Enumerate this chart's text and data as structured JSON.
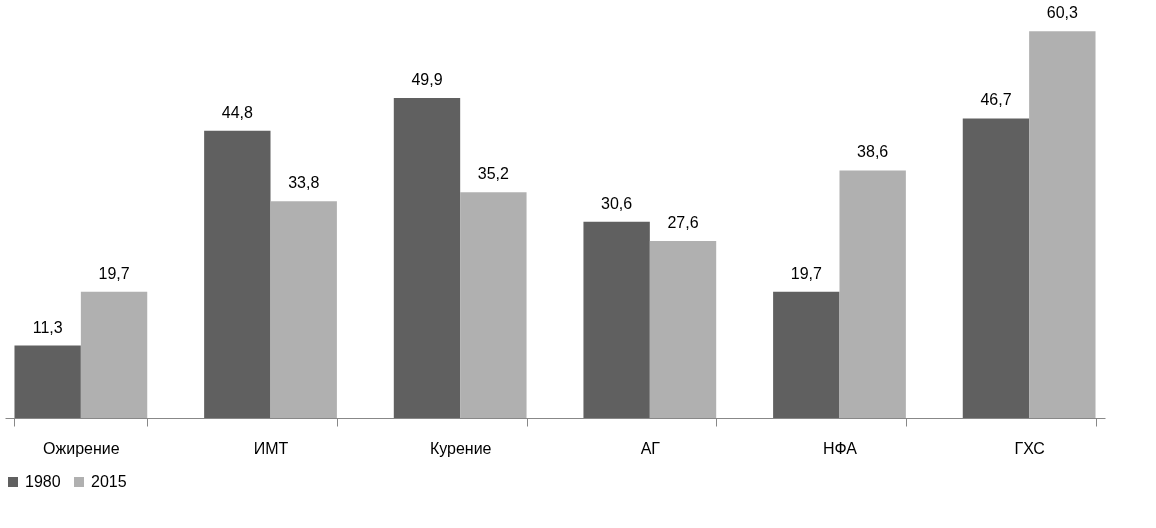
{
  "chart_data": {
    "type": "bar",
    "categories": [
      "Ожирение",
      "ИМТ",
      "Курение",
      "АГ",
      "НФА",
      "ГХС"
    ],
    "series": [
      {
        "name": "1980",
        "color": "#606060",
        "values": [
          11.3,
          44.8,
          49.9,
          30.6,
          19.7,
          46.7
        ],
        "value_labels": [
          "11,3",
          "44,8",
          "49,9",
          "30,6",
          "19,7",
          "46,7"
        ]
      },
      {
        "name": "2015",
        "color": "#b0b0b0",
        "values": [
          19.7,
          33.8,
          35.2,
          27.6,
          38.6,
          60.3
        ],
        "value_labels": [
          "19,7",
          "33,8",
          "35,2",
          "27,6",
          "38,6",
          "60,3"
        ]
      }
    ],
    "legend": "bottom"
  }
}
